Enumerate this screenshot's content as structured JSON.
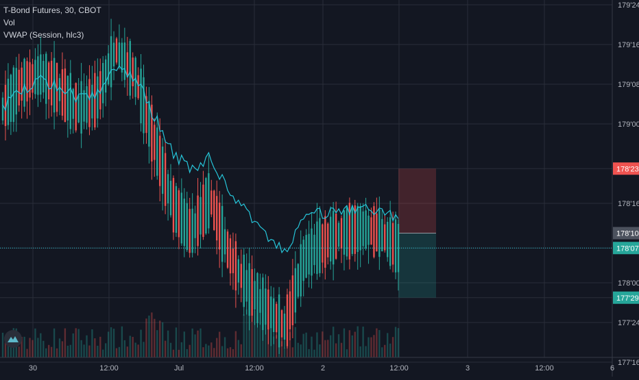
{
  "legend": {
    "symbol": "T-Bond Futures, 30, CBOT",
    "volume": "Vol",
    "vwap": "VWAP (Session, hlc3)"
  },
  "colors": {
    "background": "#131722",
    "grid": "#2a2e39",
    "up": "#26a69a",
    "down": "#ef5350",
    "vwap": "#26c6da",
    "axis_text": "#b2b5be",
    "current_price_line": "#26c6da"
  },
  "chart_data": {
    "type": "candlestick",
    "y_axis": {
      "ticks": [
        "179'24",
        "179'16",
        "179'08",
        "179'00",
        "178'23",
        "178'16",
        "178'07",
        "178'00",
        "177'29",
        "177'24",
        "177'16"
      ]
    },
    "x_axis": {
      "ticks": [
        "30",
        "12:00",
        "Jul",
        "12:00",
        "2",
        "12:00",
        "3",
        "12:00",
        "6"
      ]
    },
    "price_badges": [
      {
        "label": "178'23",
        "color": "#ef5350",
        "role": "stop-loss"
      },
      {
        "label": "178'10",
        "color": "#4c525e",
        "role": "entry"
      },
      {
        "label": "178'07",
        "color": "#26a69a",
        "role": "last-price"
      },
      {
        "label": "177'29",
        "color": "#26a69a",
        "role": "take-profit"
      }
    ],
    "position": {
      "entry": "178'10",
      "stop": "178'23",
      "target": "177'29"
    },
    "candles": [
      [
        "30 09:00",
        "179'00",
        "179'04",
        "178'30",
        "179'03"
      ],
      [
        "30 09:30",
        "179'03",
        "179'11",
        "179'01",
        "179'08"
      ],
      [
        "30 10:00",
        "179'08",
        "179'13",
        "179'05",
        "179'10"
      ],
      [
        "30 10:30",
        "179'10",
        "179'12",
        "179'06",
        "179'07"
      ],
      [
        "30 11:00",
        "179'07",
        "179'10",
        "179'01",
        "179'03"
      ],
      [
        "30 11:30",
        "179'03",
        "179'07",
        "179'02",
        "179'05"
      ],
      [
        "30 12:00",
        "179'05",
        "179'18",
        "179'04",
        "179'15"
      ],
      [
        "30 12:30",
        "179'15",
        "179'16",
        "179'08",
        "179'10"
      ],
      [
        "30 13:00",
        "179'10",
        "179'11",
        "178'28",
        "178'29"
      ],
      [
        "30 13:30",
        "178'29",
        "178'30",
        "178'14",
        "178'16"
      ],
      [
        "30 14:00",
        "178'16",
        "178'19",
        "178'08",
        "178'10"
      ],
      [
        "30 14:30",
        "178'10",
        "178'20",
        "178'09",
        "178'17"
      ],
      [
        "Jul 09:00",
        "178'17",
        "178'18",
        "178'04",
        "178'06"
      ],
      [
        "Jul 10:00",
        "178'06",
        "178'07",
        "177'29",
        "177'31"
      ],
      [
        "Jul 11:00",
        "177'31",
        "178'02",
        "177'25",
        "177'27"
      ],
      [
        "Jul 12:00",
        "177'27",
        "177'31",
        "177'17",
        "177'23"
      ],
      [
        "Jul 12:30",
        "177'23",
        "178'07",
        "177'22",
        "178'05"
      ],
      [
        "Jul 13:00",
        "178'05",
        "178'12",
        "178'01",
        "178'08"
      ],
      [
        "2 09:00",
        "178'08",
        "178'13",
        "178'06",
        "178'10"
      ],
      [
        "2 10:00",
        "178'10",
        "178'14",
        "178'07",
        "178'11"
      ],
      [
        "2 11:00",
        "178'11",
        "178'15",
        "178'07",
        "178'10"
      ],
      [
        "2 12:00",
        "178'10",
        "178'11",
        "178'01",
        "178'07"
      ]
    ]
  }
}
